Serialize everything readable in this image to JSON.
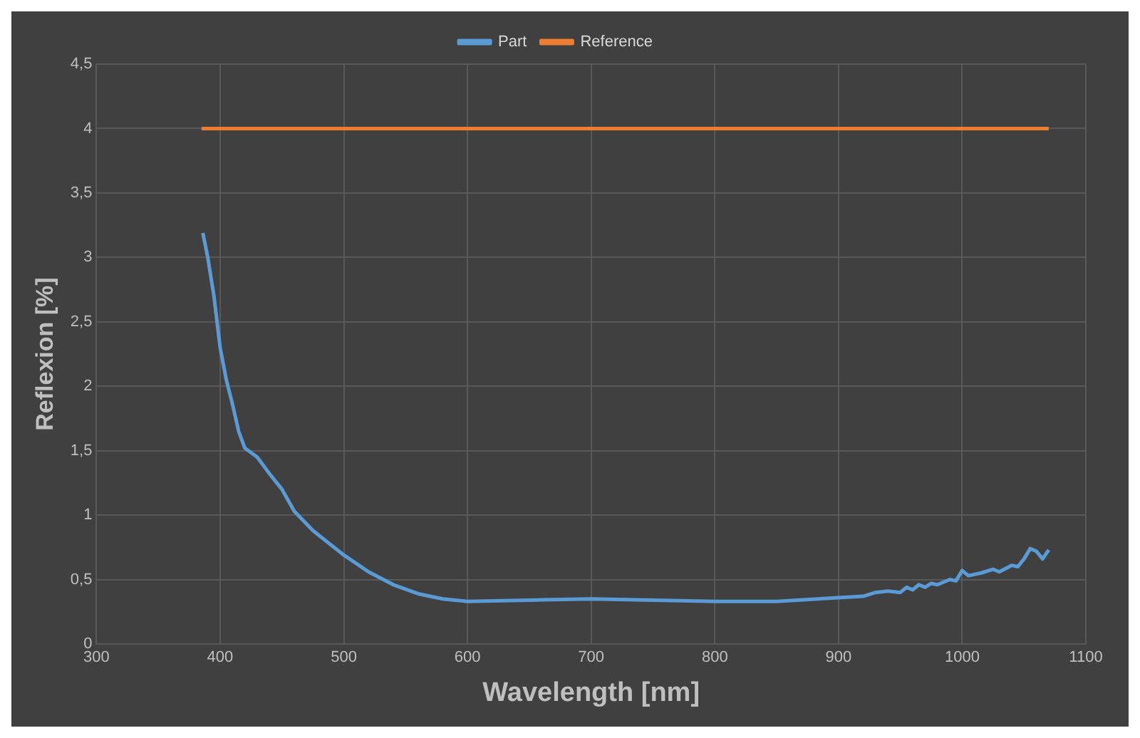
{
  "chart_data": {
    "type": "line",
    "xlabel": "Wavelength [nm]",
    "ylabel": "Reflexion [%]",
    "xlim": [
      300,
      1100
    ],
    "xticks": [
      300,
      400,
      500,
      600,
      700,
      800,
      900,
      1000,
      1100
    ],
    "ylim": [
      0,
      4.5
    ],
    "yticks": [
      0,
      {
        "value": 0.5,
        "label": "0,5"
      },
      1,
      {
        "value": 1.5,
        "label": "1,5"
      },
      2,
      {
        "value": 2.5,
        "label": "2,5"
      },
      3,
      {
        "value": 3.5,
        "label": "3,5"
      },
      4,
      {
        "value": 4.5,
        "label": "4,5"
      }
    ],
    "grid": true,
    "legend": "top",
    "marker": "none",
    "line_style": "solid",
    "series": [
      {
        "name": "Part",
        "color": "#5b9bd5",
        "x": [
          386,
          390,
          395,
          400,
          405,
          410,
          415,
          420,
          430,
          440,
          450,
          460,
          475,
          500,
          520,
          540,
          560,
          580,
          600,
          650,
          700,
          750,
          800,
          850,
          900,
          920,
          930,
          940,
          950,
          955,
          960,
          965,
          970,
          975,
          980,
          990,
          995,
          1000,
          1005,
          1015,
          1025,
          1030,
          1040,
          1045,
          1050,
          1055,
          1060,
          1065,
          1070
        ],
        "values": [
          3.19,
          3.0,
          2.7,
          2.3,
          2.05,
          1.86,
          1.65,
          1.52,
          1.45,
          1.32,
          1.2,
          1.03,
          0.88,
          0.69,
          0.56,
          0.46,
          0.39,
          0.35,
          0.33,
          0.34,
          0.35,
          0.34,
          0.33,
          0.33,
          0.36,
          0.37,
          0.4,
          0.41,
          0.4,
          0.44,
          0.42,
          0.46,
          0.44,
          0.47,
          0.46,
          0.5,
          0.49,
          0.57,
          0.53,
          0.55,
          0.58,
          0.56,
          0.61,
          0.6,
          0.66,
          0.74,
          0.72,
          0.66,
          0.73
        ]
      },
      {
        "name": "Reference",
        "color": "#ed7d31",
        "x": [
          385,
          1070
        ],
        "values": [
          4,
          4
        ]
      }
    ]
  }
}
